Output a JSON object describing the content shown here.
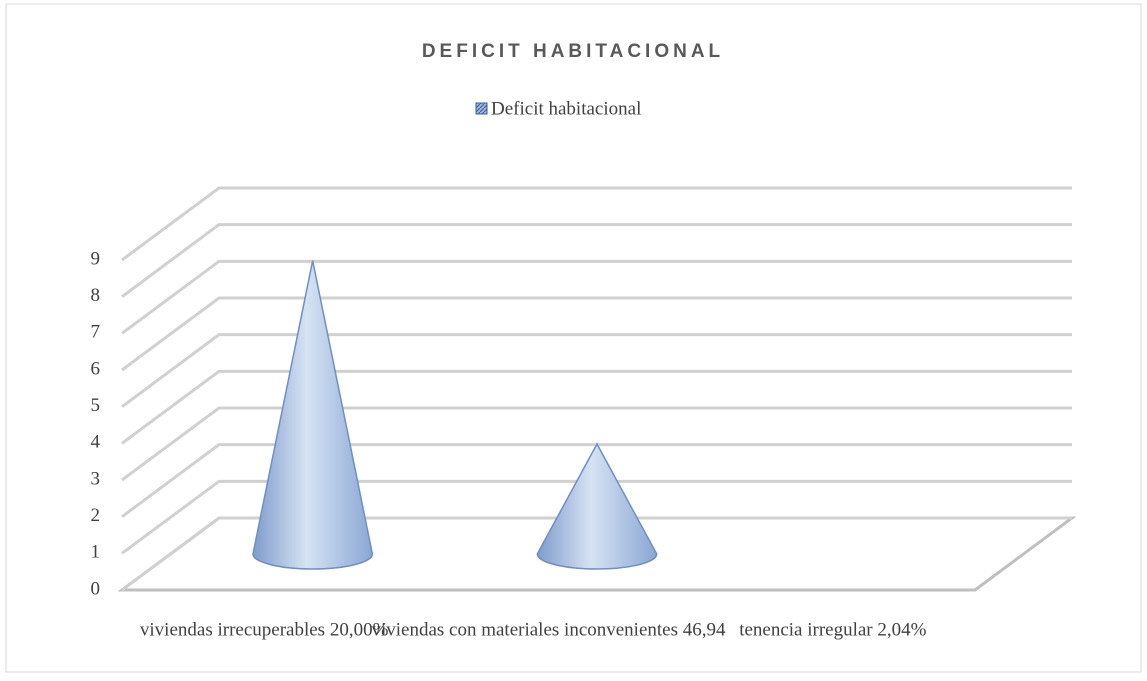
{
  "chart_data": {
    "type": "cone3d",
    "title": "DEFICIT  HABITACIONAL",
    "categories": [
      "viviendas irrecuperables 20,00%",
      "viviendas con materiales inconvenientes 46,94",
      "tenencia irregular 2,04%"
    ],
    "series": [
      {
        "name": "Deficit  habitacional",
        "color": "#9db7dc",
        "values": [
          8,
          3,
          0
        ]
      }
    ],
    "ylim": [
      0,
      9
    ],
    "yticks": [
      0,
      1,
      2,
      3,
      4,
      5,
      6,
      7,
      8,
      9
    ],
    "grid": true,
    "legend": "top"
  }
}
